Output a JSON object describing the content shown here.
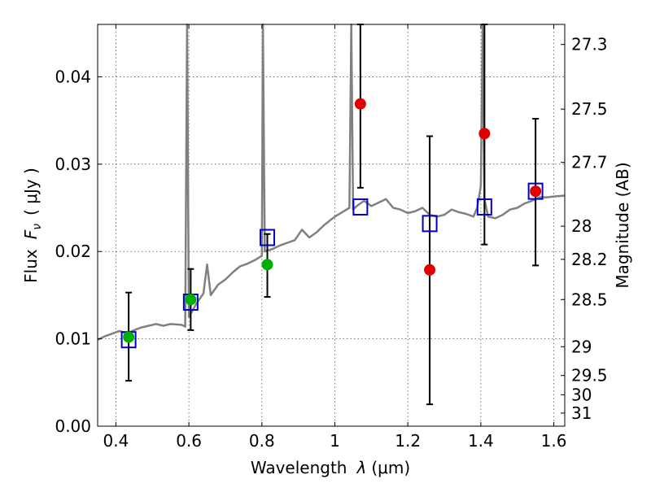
{
  "chart_data": {
    "type": "scatter",
    "xlabel_prefix": "Wavelength",
    "xlabel_symbol": "λ",
    "xlabel_unit": "(μm)",
    "ylabel_prefix": "Flux",
    "ylabel_symbol": "F",
    "ylabel_subscript": "ν",
    "ylabel_unit": "( μJy )",
    "y2label": "Magnitude (AB)",
    "xlim": [
      0.35,
      1.63
    ],
    "ylim": [
      0.0,
      0.046
    ],
    "grid": true,
    "x_ticks": [
      0.4,
      0.6,
      0.8,
      1.0,
      1.2,
      1.4,
      1.6
    ],
    "x_tick_labels": [
      "0.4",
      "0.6",
      "0.8",
      "1",
      "1.2",
      "1.4",
      "1.6"
    ],
    "y_ticks": [
      0.0,
      0.01,
      0.02,
      0.03,
      0.04
    ],
    "y_tick_labels": [
      "0.00",
      "0.01",
      "0.02",
      "0.03",
      "0.04"
    ],
    "magnitude_ticks": [
      {
        "label": "27.3",
        "flux": 0.0437
      },
      {
        "label": "27.5",
        "flux": 0.0363
      },
      {
        "label": "27.7",
        "flux": 0.0302
      },
      {
        "label": "28",
        "flux": 0.0229
      },
      {
        "label": "28.2",
        "flux": 0.0191
      },
      {
        "label": "28.5",
        "flux": 0.0145
      },
      {
        "label": "29",
        "flux": 0.0091
      },
      {
        "label": "29.5",
        "flux": 0.0058
      },
      {
        "label": "30",
        "flux": 0.0036
      },
      {
        "label": "31",
        "flux": 0.0015
      }
    ],
    "series": [
      {
        "name": "model spectrum",
        "style": "line",
        "color": "#808080",
        "points": [
          [
            0.35,
            0.0099
          ],
          [
            0.37,
            0.0103
          ],
          [
            0.39,
            0.0106
          ],
          [
            0.41,
            0.0109
          ],
          [
            0.43,
            0.0106
          ],
          [
            0.45,
            0.011
          ],
          [
            0.47,
            0.0113
          ],
          [
            0.49,
            0.0115
          ],
          [
            0.51,
            0.0117
          ],
          [
            0.53,
            0.0115
          ],
          [
            0.55,
            0.0117
          ],
          [
            0.58,
            0.0116
          ],
          [
            0.59,
            0.0114
          ],
          [
            0.595,
            0.046
          ],
          [
            0.6,
            0.0125
          ],
          [
            0.62,
            0.014
          ],
          [
            0.64,
            0.0152
          ],
          [
            0.65,
            0.0185
          ],
          [
            0.66,
            0.015
          ],
          [
            0.68,
            0.0162
          ],
          [
            0.7,
            0.0168
          ],
          [
            0.72,
            0.0176
          ],
          [
            0.74,
            0.0183
          ],
          [
            0.76,
            0.0186
          ],
          [
            0.78,
            0.019
          ],
          [
            0.8,
            0.0195
          ],
          [
            0.803,
            0.046
          ],
          [
            0.808,
            0.02
          ],
          [
            0.83,
            0.0203
          ],
          [
            0.85,
            0.0207
          ],
          [
            0.87,
            0.021
          ],
          [
            0.89,
            0.0213
          ],
          [
            0.91,
            0.0225
          ],
          [
            0.93,
            0.0216
          ],
          [
            0.95,
            0.0222
          ],
          [
            0.97,
            0.023
          ],
          [
            1.0,
            0.024
          ],
          [
            1.02,
            0.0245
          ],
          [
            1.04,
            0.025
          ],
          [
            1.045,
            0.046
          ],
          [
            1.05,
            0.0248
          ],
          [
            1.06,
            0.0252
          ],
          [
            1.08,
            0.0258
          ],
          [
            1.1,
            0.0252
          ],
          [
            1.12,
            0.0256
          ],
          [
            1.14,
            0.026
          ],
          [
            1.16,
            0.025
          ],
          [
            1.18,
            0.0248
          ],
          [
            1.2,
            0.0244
          ],
          [
            1.22,
            0.0246
          ],
          [
            1.24,
            0.025
          ],
          [
            1.26,
            0.0242
          ],
          [
            1.28,
            0.024
          ],
          [
            1.3,
            0.0242
          ],
          [
            1.32,
            0.0248
          ],
          [
            1.34,
            0.0245
          ],
          [
            1.36,
            0.0243
          ],
          [
            1.38,
            0.024
          ],
          [
            1.39,
            0.025
          ],
          [
            1.4,
            0.0275
          ],
          [
            1.405,
            0.046
          ],
          [
            1.41,
            0.026
          ],
          [
            1.42,
            0.024
          ],
          [
            1.44,
            0.0238
          ],
          [
            1.46,
            0.0242
          ],
          [
            1.48,
            0.0248
          ],
          [
            1.5,
            0.025
          ],
          [
            1.52,
            0.0255
          ],
          [
            1.54,
            0.0258
          ],
          [
            1.56,
            0.0262
          ],
          [
            1.58,
            0.0262
          ],
          [
            1.6,
            0.0263
          ],
          [
            1.63,
            0.0264
          ]
        ]
      },
      {
        "name": "model fluxes",
        "style": "open-square",
        "color": "#0000cc",
        "points": [
          [
            0.435,
            0.0099
          ],
          [
            0.605,
            0.0142
          ],
          [
            0.815,
            0.0216
          ],
          [
            1.07,
            0.0251
          ],
          [
            1.26,
            0.0232
          ],
          [
            1.41,
            0.0251
          ],
          [
            1.55,
            0.0269
          ]
        ]
      },
      {
        "name": "observed (green)",
        "style": "filled-circle",
        "color": "#00b000",
        "points": [
          {
            "x": 0.435,
            "y": 0.0102,
            "err_low": 0.0052,
            "err_high": 0.0153
          },
          {
            "x": 0.605,
            "y": 0.0145,
            "err_low": 0.011,
            "err_high": 0.018
          },
          {
            "x": 0.815,
            "y": 0.0185,
            "err_low": 0.0148,
            "err_high": 0.022
          }
        ]
      },
      {
        "name": "observed (red)",
        "style": "filled-circle",
        "color": "#e00000",
        "points": [
          {
            "x": 1.07,
            "y": 0.0369,
            "err_low": 0.0273,
            "err_high": 0.046
          },
          {
            "x": 1.26,
            "y": 0.0179,
            "err_low": 0.0025,
            "err_high": 0.0332
          },
          {
            "x": 1.41,
            "y": 0.0335,
            "err_low": 0.0208,
            "err_high": 0.046
          },
          {
            "x": 1.55,
            "y": 0.0269,
            "err_low": 0.0184,
            "err_high": 0.0352
          }
        ]
      }
    ]
  }
}
